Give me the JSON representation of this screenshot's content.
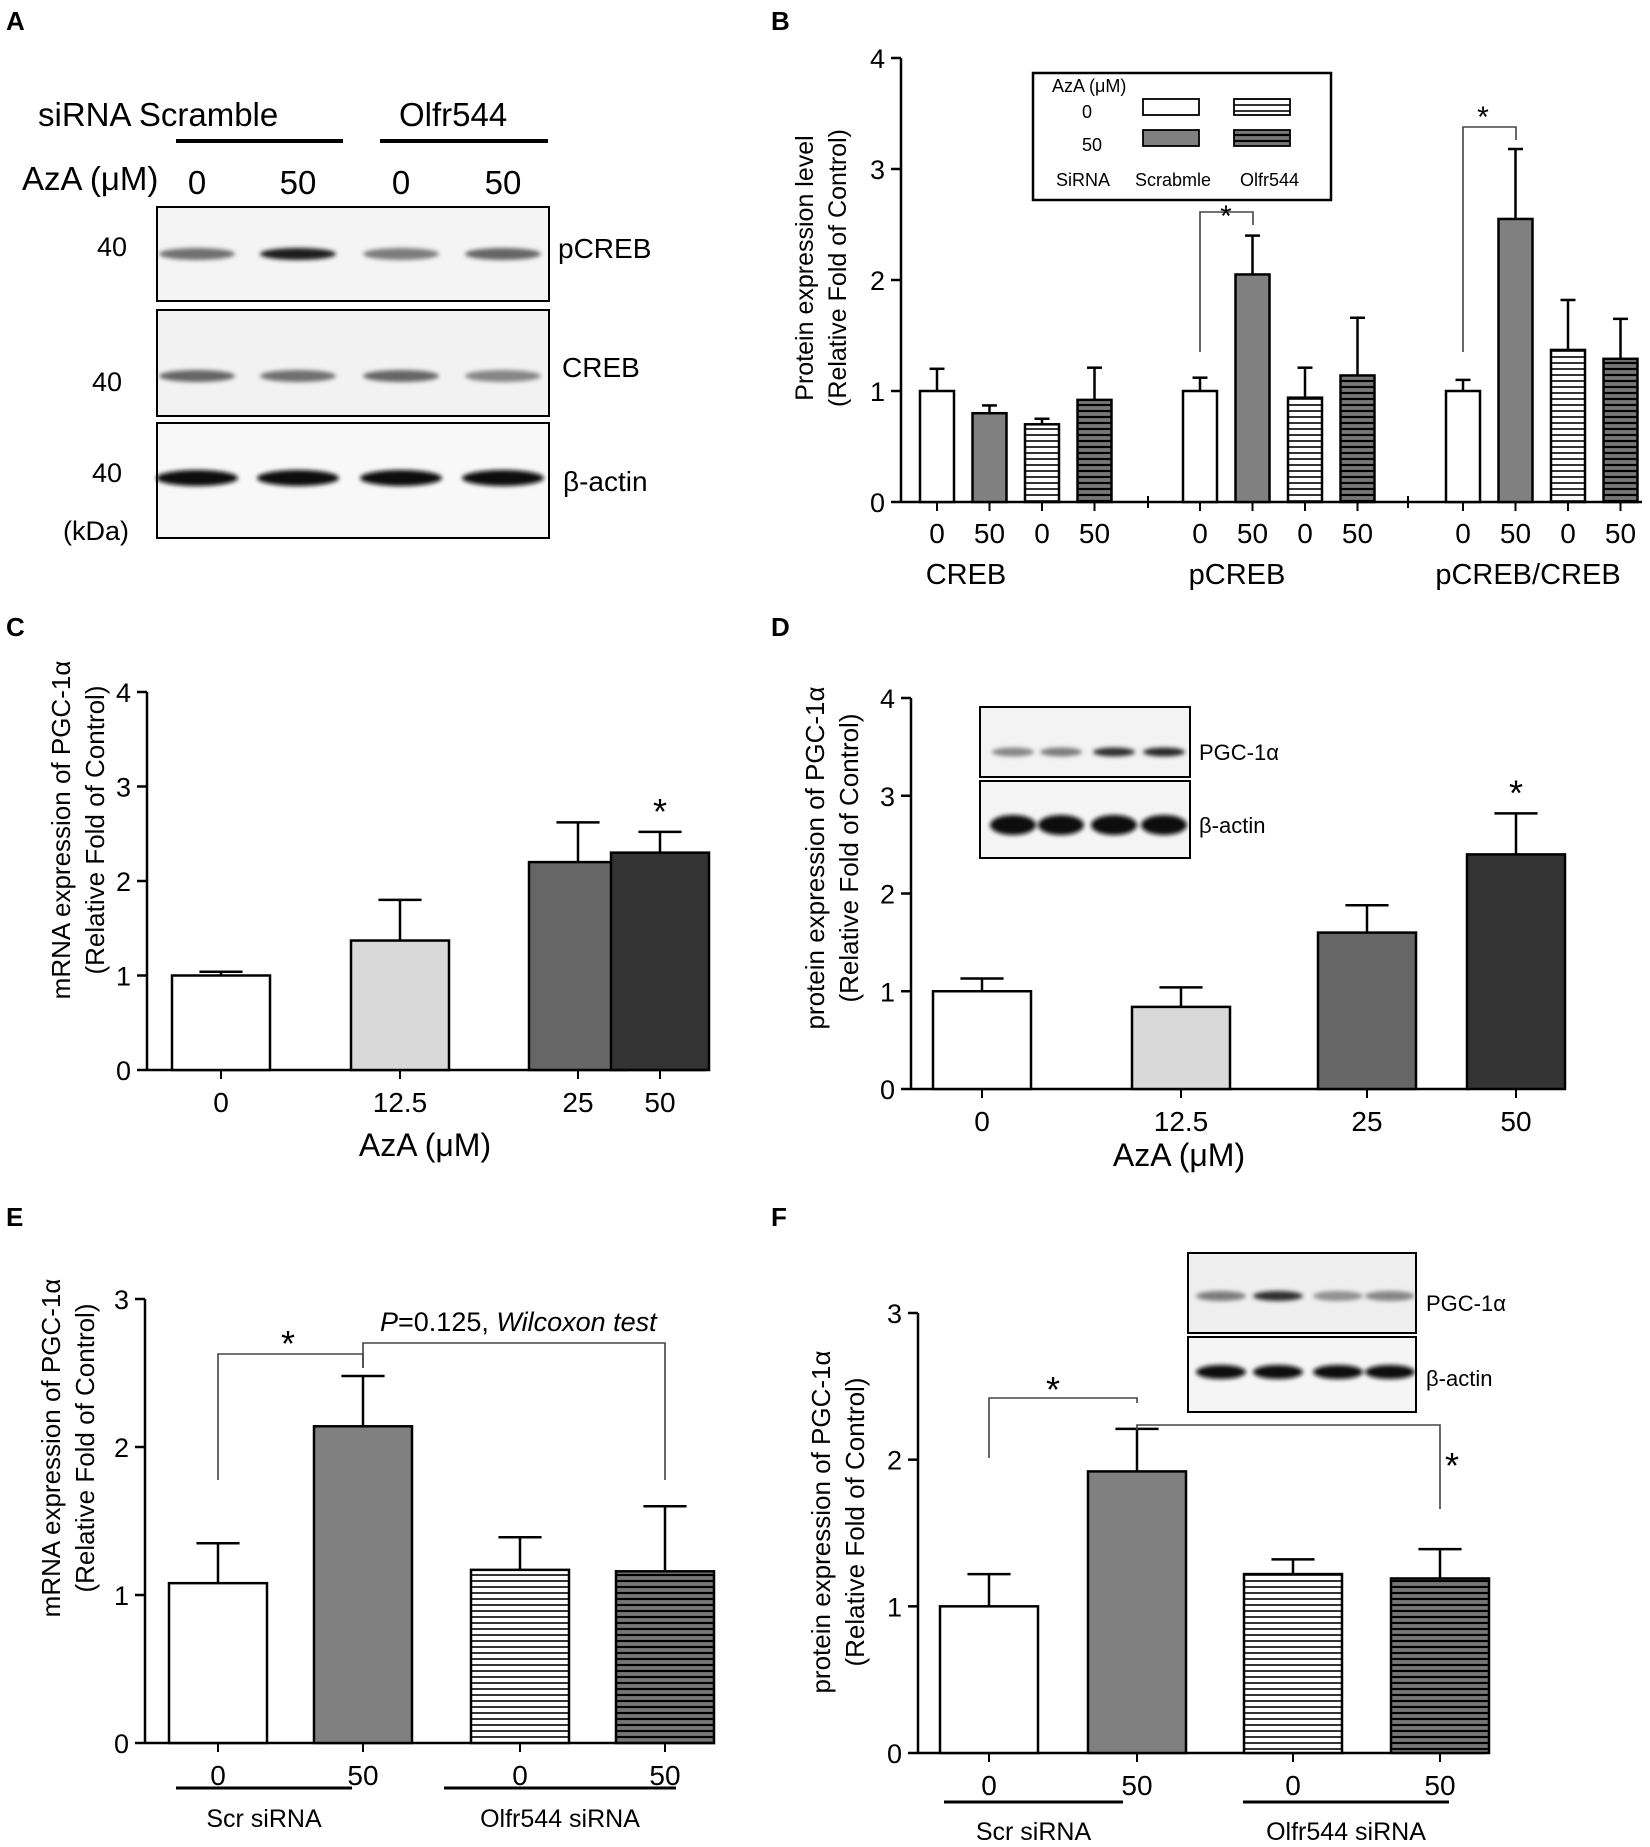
{
  "colors": {
    "scr0": "#ffffff",
    "scr50": "#808080",
    "c0": "#ffffff",
    "c12": "#d9d9d9",
    "c25": "#666666",
    "c50": "#333333",
    "hatch_light": "#ffffff",
    "hatch_dark": "#777777",
    "line": "#000000"
  },
  "panels": {
    "A": "A",
    "B": "B",
    "C": "C",
    "D": "D",
    "E": "E",
    "F": "F"
  },
  "blotA": {
    "group1": "siRNA Scramble",
    "group2": "Olfr544",
    "dose_label": "AzA (μM)",
    "doses": [
      "0",
      "50",
      "0",
      "50"
    ],
    "kda": [
      "40",
      "40",
      "40"
    ],
    "kda_unit": "(kDa)",
    "bands": [
      "pCREB",
      "CREB",
      "β-actin"
    ],
    "band_intensity": {
      "pCREB": [
        0.55,
        0.95,
        0.5,
        0.6
      ],
      "CREB": [
        0.6,
        0.55,
        0.6,
        0.45
      ],
      "actin": [
        1,
        1,
        1,
        1
      ]
    }
  },
  "inset_D": {
    "bands": [
      "PGC-1α",
      "β-actin"
    ],
    "intensity": {
      "pgc": [
        0.45,
        0.5,
        0.85,
        0.9
      ],
      "actin": [
        1,
        1,
        1,
        1
      ]
    }
  },
  "inset_F": {
    "bands": [
      "PGC-1α",
      "β-actin"
    ],
    "intensity": {
      "pgc": [
        0.5,
        0.85,
        0.4,
        0.45
      ],
      "actin": [
        1,
        1,
        1,
        1
      ]
    }
  },
  "chart_data": [
    {
      "id": "B",
      "type": "bar",
      "ylabel": "Protein expression level",
      "ylabel2": "(Relative Fold of Control)",
      "ylim": [
        0,
        4
      ],
      "yticks": [
        "0",
        "1",
        "2",
        "3",
        "4"
      ],
      "groups": [
        "CREB",
        "pCREB",
        "pCREB/CREB"
      ],
      "dose_ticks": [
        "0",
        "50",
        "0",
        "50"
      ],
      "series": [
        {
          "name": "Scramble 0",
          "values": [
            1.0,
            1.0,
            1.0
          ],
          "errors": [
            0.2,
            0.12,
            0.1
          ]
        },
        {
          "name": "Scramble 50",
          "values": [
            0.8,
            2.05,
            2.55
          ],
          "errors": [
            0.07,
            0.35,
            0.63
          ]
        },
        {
          "name": "Olfr544 0",
          "values": [
            0.7,
            0.94,
            1.37
          ],
          "errors": [
            0.05,
            0.27,
            0.45
          ]
        },
        {
          "name": "Olfr544 50",
          "values": [
            0.92,
            1.14,
            1.29
          ],
          "errors": [
            0.29,
            0.52,
            0.36
          ]
        }
      ],
      "legend": {
        "title": "AzA (μM)",
        "rows": [
          "0",
          "50"
        ],
        "footer": [
          "SiRNA",
          "Scrabmle",
          "Olfr544"
        ]
      },
      "significance": [
        "*",
        "*"
      ]
    },
    {
      "id": "C",
      "type": "bar",
      "ylabel": "mRNA expression of PGC-1α",
      "ylabel2": "(Relative Fold of Control)",
      "xlabel": "AzA (μM)",
      "ylim": [
        0,
        4
      ],
      "yticks": [
        "0",
        "1",
        "2",
        "3",
        "4"
      ],
      "categories": [
        "0",
        "12.5",
        "25",
        "50"
      ],
      "values": [
        1.0,
        1.37,
        2.2,
        2.3
      ],
      "errors": [
        0.04,
        0.43,
        0.42,
        0.22
      ],
      "significance": [
        "*"
      ]
    },
    {
      "id": "D",
      "type": "bar",
      "ylabel": "protein expression of PGC-1α",
      "ylabel2": "(Relative Fold of Control)",
      "xlabel": "AzA (μM)",
      "ylim": [
        0,
        4
      ],
      "yticks": [
        "0",
        "1",
        "2",
        "3",
        "4"
      ],
      "categories": [
        "0",
        "12.5",
        "25",
        "50"
      ],
      "values": [
        1.0,
        0.84,
        1.6,
        2.4
      ],
      "errors": [
        0.13,
        0.2,
        0.28,
        0.42
      ],
      "significance": [
        "*"
      ]
    },
    {
      "id": "E",
      "type": "bar",
      "ylabel": "mRNA expression of PGC-1α",
      "ylabel2": "(Relative Fold of Control)",
      "ylim": [
        0,
        3
      ],
      "yticks": [
        "0",
        "1",
        "2",
        "3"
      ],
      "categories": [
        "0",
        "50",
        "0",
        "50"
      ],
      "groups": [
        "Scr siRNA",
        "Olfr544 siRNA"
      ],
      "values": [
        1.08,
        2.14,
        1.17,
        1.16
      ],
      "errors": [
        0.27,
        0.34,
        0.22,
        0.44
      ],
      "significance": [
        "*"
      ],
      "annotation": {
        "p": "P",
        "value": "=0.125, ",
        "test": "Wilcoxon test"
      }
    },
    {
      "id": "F",
      "type": "bar",
      "ylabel": "protein expression of PGC-1α",
      "ylabel2": "(Relative Fold of Control)",
      "ylim": [
        0,
        3
      ],
      "yticks": [
        "0",
        "1",
        "2",
        "3"
      ],
      "categories": [
        "0",
        "50",
        "0",
        "50"
      ],
      "groups": [
        "Scr siRNA",
        "Olfr544 siRNA"
      ],
      "values": [
        1.0,
        1.92,
        1.22,
        1.19
      ],
      "errors": [
        0.22,
        0.29,
        0.1,
        0.2
      ],
      "significance": [
        "*",
        "*"
      ]
    }
  ]
}
